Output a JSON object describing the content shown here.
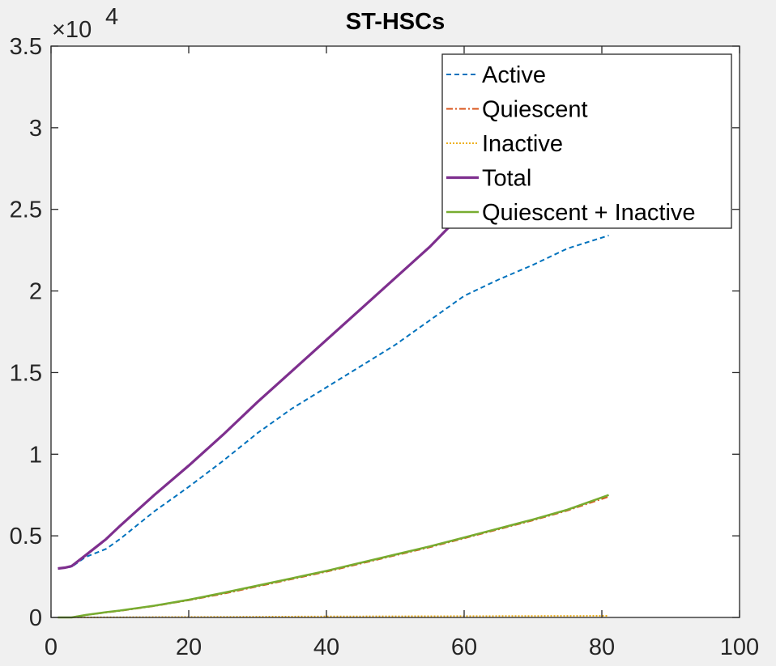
{
  "chart_data": {
    "type": "line",
    "title": "ST-HSCs",
    "xlabel": "",
    "ylabel": "",
    "xlim": [
      0,
      100
    ],
    "ylim": [
      0,
      35000
    ],
    "x_ticks": [
      "0",
      "20",
      "40",
      "60",
      "80",
      "100"
    ],
    "y_ticks": [
      "0",
      "0.5",
      "1",
      "1.5",
      "2",
      "2.5",
      "3",
      "3.5"
    ],
    "y_exponent": {
      "base": "×10",
      "power": "4"
    },
    "grid": false,
    "legend_position": "top-right",
    "series": [
      {
        "name": "Active",
        "color": "#0072BD",
        "style": "dashed",
        "x": [
          1,
          3,
          5,
          8,
          10,
          15,
          20,
          25,
          30,
          35,
          40,
          45,
          50,
          55,
          60,
          65,
          70,
          75,
          81
        ],
        "y": [
          3000,
          3100,
          3700,
          4200,
          4800,
          6500,
          8000,
          9600,
          11300,
          12800,
          14100,
          15400,
          16700,
          18200,
          19700,
          20700,
          21600,
          22600,
          23400
        ]
      },
      {
        "name": "Quiescent",
        "color": "#D95319",
        "style": "dashdot",
        "x": [
          1,
          3,
          5,
          8,
          10,
          15,
          20,
          25,
          30,
          35,
          40,
          45,
          50,
          55,
          60,
          65,
          70,
          75,
          81
        ],
        "y": [
          0,
          0,
          150,
          300,
          400,
          700,
          1050,
          1450,
          1900,
          2350,
          2800,
          3300,
          3800,
          4300,
          4850,
          5400,
          5950,
          6550,
          7400
        ]
      },
      {
        "name": "Inactive",
        "color": "#EDB120",
        "style": "dotted",
        "x": [
          1,
          20,
          40,
          60,
          81
        ],
        "y": [
          0,
          30,
          60,
          80,
          100
        ]
      },
      {
        "name": "Total",
        "color": "#7E2F8E",
        "style": "solid-thick",
        "x": [
          1,
          2,
          3,
          5,
          8,
          10,
          15,
          20,
          25,
          30,
          35,
          40,
          45,
          50,
          55,
          58,
          59
        ],
        "y": [
          3000,
          3050,
          3150,
          3800,
          4800,
          5600,
          7500,
          9300,
          11200,
          13200,
          15100,
          17000,
          18900,
          20800,
          22700,
          24000,
          24500
        ]
      },
      {
        "name": "Quiescent + Inactive",
        "color": "#77AC30",
        "style": "solid",
        "x": [
          1,
          3,
          5,
          8,
          10,
          15,
          20,
          25,
          30,
          35,
          40,
          45,
          50,
          55,
          60,
          65,
          70,
          75,
          81
        ],
        "y": [
          0,
          0,
          150,
          320,
          420,
          720,
          1080,
          1500,
          1950,
          2400,
          2850,
          3350,
          3850,
          4350,
          4900,
          5450,
          6000,
          6600,
          7500
        ]
      }
    ]
  }
}
